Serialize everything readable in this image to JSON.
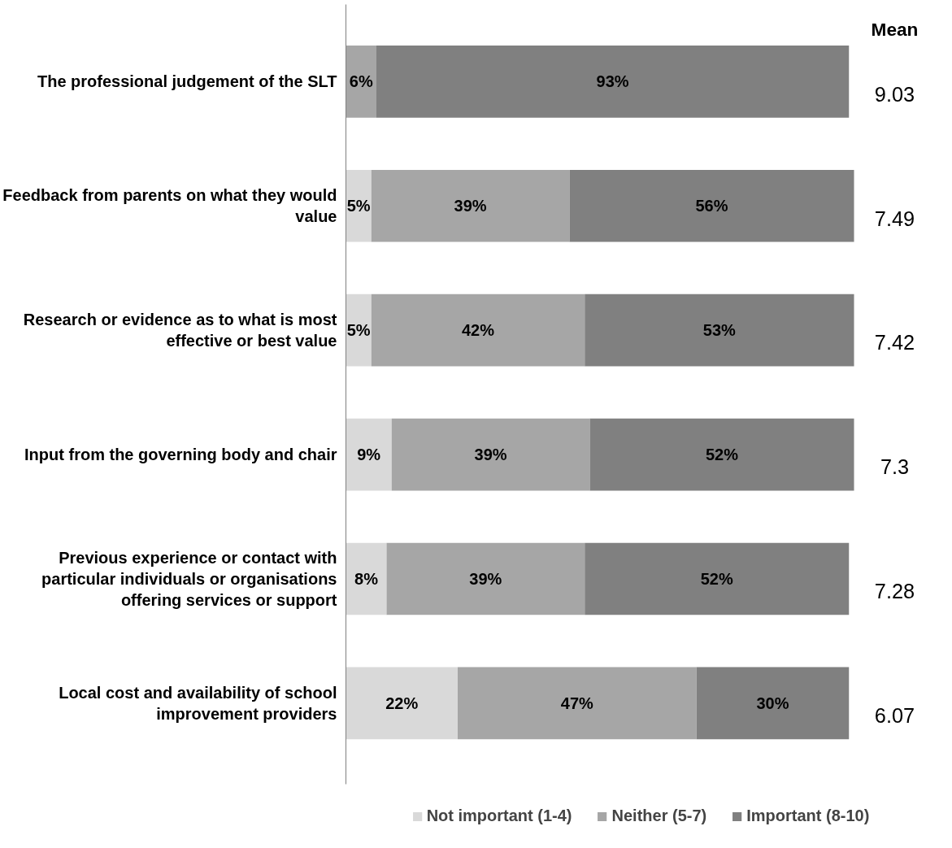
{
  "chart_data": {
    "type": "bar",
    "orientation": "horizontal",
    "stacked": true,
    "categories": [
      "The professional judgement of the SLT",
      "Feedback from parents on what they would value",
      "Research or evidence as to what is most effective or best value",
      "Input from the governing body and chair",
      "Previous experience or contact with particular individuals or organisations offering services or support",
      "Local cost and availability of school improvement providers"
    ],
    "series": [
      {
        "name": "Not important (1-4)",
        "color": "#d9d9d9",
        "values": [
          0,
          5,
          5,
          9,
          8,
          22
        ],
        "value_labels": [
          null,
          "5%",
          "5%",
          "9%",
          "8%",
          "22%"
        ]
      },
      {
        "name": "Neither (5-7)",
        "color": "#a6a6a6",
        "values": [
          6,
          39,
          42,
          39,
          39,
          47
        ],
        "value_labels": [
          "6%",
          "39%",
          "42%",
          "39%",
          "39%",
          "47%"
        ]
      },
      {
        "name": "Important (8-10)",
        "color": "#808080",
        "values": [
          93,
          56,
          53,
          52,
          52,
          30
        ],
        "value_labels": [
          "93%",
          "56%",
          "53%",
          "52%",
          "52%",
          "30%"
        ]
      }
    ],
    "annotations": [
      "Mean",
      "9.03",
      "7.49",
      "7.42",
      "7.3",
      "7.28",
      "6.07"
    ],
    "legend": "bottom",
    "grid": false,
    "tick_labels": "y"
  }
}
